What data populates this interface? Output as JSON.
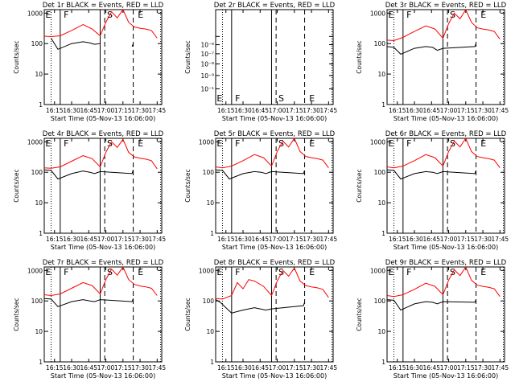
{
  "figure": {
    "xlabel": "Start Time (05-Nov-13 16:06:00)",
    "ylabel": "Counts/sec",
    "x_tick_labels": [
      "16:15",
      "16:30",
      "16:45",
      "17:00",
      "17:15",
      "17:30",
      "17:45"
    ],
    "colors": {
      "events": "#000000",
      "lld": "#ff0000",
      "axes": "#000000"
    }
  },
  "chart_data": [
    {
      "type": "line",
      "title": "Det 1r BLACK = Events, RED = LLD",
      "xlabel": "Start Time (05-Nov-13 16:06:00)",
      "ylabel": "Counts/sec",
      "xlim": [
        "16:06",
        "17:49"
      ],
      "ylim": [
        1,
        1300
      ],
      "yscale": "log",
      "y_ticks": [
        1,
        10,
        100,
        1000
      ],
      "y_tick_labels": [
        "1",
        "10",
        "100",
        "1000"
      ],
      "annotations": [
        "E",
        "F",
        "S",
        "E"
      ],
      "series": [
        {
          "name": "BLACK = Events",
          "color": "#000000",
          "x": [
            "16:06",
            "16:12",
            "16:12",
            "16:18",
            "16:30",
            "16:40",
            "16:46",
            "16:50",
            "16:55",
            "16:55",
            "16:56",
            "16:58",
            "17:21",
            "17:23",
            "17:24"
          ],
          "y": [
            null,
            150,
            150,
            65,
            100,
            115,
            105,
            95,
            100,
            110,
            null,
            null,
            null,
            80,
            100
          ]
        },
        {
          "name": "RED = LLD",
          "color": "#ff0000",
          "x": [
            "16:06",
            "16:12",
            "16:20",
            "16:30",
            "16:40",
            "16:48",
            "16:55",
            "17:00",
            "17:05",
            "17:10",
            "17:15",
            "17:20",
            "17:25",
            "17:30",
            "17:35",
            "17:40",
            "17:45"
          ],
          "y": [
            175,
            170,
            180,
            270,
            420,
            300,
            180,
            500,
            1100,
            700,
            1300,
            500,
            350,
            320,
            300,
            270,
            150
          ]
        }
      ]
    },
    {
      "type": "line",
      "title": "Det 2r BLACK = Events, RED = LLD",
      "xlabel": "Start Time (05-Nov-13 16:06:00)",
      "ylabel": "Counts/sec",
      "xlim": [
        "16:06",
        "17:49"
      ],
      "ylim": [
        0.5,
        1.5
      ],
      "yscale": "log",
      "y_ticks": [
        0.6,
        0.7,
        0.8,
        0.9,
        1.0,
        1.1
      ],
      "y_tick_labels": [
        "10⁻¹",
        "10⁻⁹",
        "10⁻⁸",
        "10⁻⁷",
        "10⁻⁶",
        ""
      ],
      "annotations": [
        "E",
        "F",
        "S",
        "E"
      ],
      "series": []
    },
    {
      "type": "line",
      "title": "Det 3r BLACK = Events, RED = LLD",
      "xlabel": "Start Time (05-Nov-13 16:06:00)",
      "ylabel": "Counts/sec",
      "xlim": [
        "16:06",
        "17:49"
      ],
      "ylim": [
        1,
        1300
      ],
      "yscale": "log",
      "y_ticks": [
        1,
        10,
        100,
        1000
      ],
      "y_tick_labels": [
        "1",
        "10",
        "100",
        "1000"
      ],
      "annotations": [
        "E",
        "F",
        "S",
        "E"
      ],
      "series": [
        {
          "name": "BLACK = Events",
          "color": "#000000",
          "x": [
            "16:06",
            "16:12",
            "16:18",
            "16:30",
            "16:40",
            "16:46",
            "16:50",
            "16:55",
            "17:23",
            "17:24"
          ],
          "y": [
            80,
            75,
            45,
            70,
            80,
            75,
            60,
            70,
            80,
            100
          ]
        },
        {
          "name": "RED = LLD",
          "color": "#ff0000",
          "x": [
            "16:06",
            "16:12",
            "16:20",
            "16:30",
            "16:40",
            "16:48",
            "16:55",
            "17:00",
            "17:05",
            "17:10",
            "17:15",
            "17:20",
            "17:25",
            "17:30",
            "17:35",
            "17:40",
            "17:45"
          ],
          "y": [
            130,
            125,
            160,
            250,
            380,
            300,
            150,
            450,
            1000,
            650,
            1300,
            500,
            330,
            300,
            280,
            250,
            140
          ]
        }
      ]
    },
    {
      "type": "line",
      "title": "Det 4r BLACK = Events, RED = LLD",
      "xlabel": "Start Time (05-Nov-13 16:06:00)",
      "ylabel": "Counts/sec",
      "xlim": [
        "16:06",
        "17:49"
      ],
      "ylim": [
        1,
        1300
      ],
      "yscale": "log",
      "y_ticks": [
        1,
        10,
        100,
        1000
      ],
      "y_tick_labels": [
        "1",
        "10",
        "100",
        "1000"
      ],
      "annotations": [
        "E",
        "F",
        "S",
        "E"
      ],
      "series": [
        {
          "name": "BLACK = Events",
          "color": "#000000",
          "x": [
            "16:06",
            "16:12",
            "16:18",
            "16:30",
            "16:40",
            "16:46",
            "16:50",
            "16:55",
            "17:23",
            "17:24"
          ],
          "y": [
            120,
            115,
            60,
            90,
            110,
            100,
            90,
            105,
            90,
            120
          ]
        },
        {
          "name": "RED = LLD",
          "color": "#ff0000",
          "x": [
            "16:06",
            "16:12",
            "16:20",
            "16:30",
            "16:40",
            "16:48",
            "16:55",
            "17:00",
            "17:05",
            "17:10",
            "17:15",
            "17:20",
            "17:25",
            "17:30",
            "17:35",
            "17:40",
            "17:45"
          ],
          "y": [
            140,
            135,
            150,
            230,
            350,
            280,
            150,
            450,
            1000,
            650,
            1200,
            450,
            320,
            290,
            270,
            240,
            130
          ]
        }
      ]
    },
    {
      "type": "line",
      "title": "Det 5r BLACK = Events, RED = LLD",
      "xlabel": "Start Time (05-Nov-13 16:06:00)",
      "ylabel": "Counts/sec",
      "xlim": [
        "16:06",
        "17:49"
      ],
      "ylim": [
        1,
        1300
      ],
      "yscale": "log",
      "y_ticks": [
        1,
        10,
        100,
        1000
      ],
      "y_tick_labels": [
        "1",
        "10",
        "100",
        "1000"
      ],
      "annotations": [
        "E",
        "F",
        "S",
        "E"
      ],
      "series": [
        {
          "name": "BLACK = Events",
          "color": "#000000",
          "x": [
            "16:06",
            "16:12",
            "16:18",
            "16:30",
            "16:40",
            "16:46",
            "16:50",
            "16:55",
            "17:23",
            "17:24"
          ],
          "y": [
            120,
            115,
            60,
            90,
            105,
            100,
            90,
            105,
            90,
            115
          ]
        },
        {
          "name": "RED = LLD",
          "color": "#ff0000",
          "x": [
            "16:06",
            "16:12",
            "16:20",
            "16:30",
            "16:40",
            "16:48",
            "16:55",
            "17:00",
            "17:05",
            "17:10",
            "17:15",
            "17:20",
            "17:25",
            "17:30",
            "17:35",
            "17:40",
            "17:45"
          ],
          "y": [
            150,
            140,
            160,
            240,
            380,
            300,
            160,
            480,
            1050,
            680,
            1300,
            480,
            330,
            300,
            280,
            250,
            140
          ]
        }
      ]
    },
    {
      "type": "line",
      "title": "Det 6r BLACK = Events, RED = LLD",
      "xlabel": "Start Time (05-Nov-13 16:06:00)",
      "ylabel": "Counts/sec",
      "xlim": [
        "16:06",
        "17:49"
      ],
      "ylim": [
        1,
        1300
      ],
      "yscale": "log",
      "y_ticks": [
        1,
        10,
        100,
        1000
      ],
      "y_tick_labels": [
        "1",
        "10",
        "100",
        "1000"
      ],
      "annotations": [
        "E",
        "F",
        "S",
        "E"
      ],
      "series": [
        {
          "name": "BLACK = Events",
          "color": "#000000",
          "x": [
            "16:06",
            "16:12",
            "16:18",
            "16:30",
            "16:40",
            "16:46",
            "16:50",
            "16:55",
            "17:23",
            "17:24"
          ],
          "y": [
            120,
            115,
            60,
            90,
            105,
            100,
            90,
            105,
            90,
            115
          ]
        },
        {
          "name": "RED = LLD",
          "color": "#ff0000",
          "x": [
            "16:06",
            "16:12",
            "16:20",
            "16:30",
            "16:40",
            "16:48",
            "16:55",
            "17:00",
            "17:05",
            "17:10",
            "17:15",
            "17:20",
            "17:25",
            "17:30",
            "17:35",
            "17:40",
            "17:45"
          ],
          "y": [
            150,
            140,
            160,
            240,
            380,
            300,
            160,
            480,
            1050,
            680,
            1300,
            480,
            330,
            300,
            280,
            250,
            140
          ]
        }
      ]
    },
    {
      "type": "line",
      "title": "Det 7r BLACK = Events, RED = LLD",
      "xlabel": "Start Time (05-Nov-13 16:06:00)",
      "ylabel": "Counts/sec",
      "xlim": [
        "16:06",
        "17:49"
      ],
      "ylim": [
        1,
        1300
      ],
      "yscale": "log",
      "y_ticks": [
        1,
        10,
        100,
        1000
      ],
      "y_tick_labels": [
        "1",
        "10",
        "100",
        "1000"
      ],
      "annotations": [
        "E",
        "F",
        "S",
        "E"
      ],
      "series": [
        {
          "name": "BLACK = Events",
          "color": "#000000",
          "x": [
            "16:06",
            "16:12",
            "16:18",
            "16:30",
            "16:40",
            "16:46",
            "16:50",
            "16:55",
            "17:23",
            "17:24"
          ],
          "y": [
            120,
            115,
            65,
            95,
            110,
            100,
            95,
            110,
            95,
            120
          ]
        },
        {
          "name": "RED = LLD",
          "color": "#ff0000",
          "x": [
            "16:06",
            "16:12",
            "16:20",
            "16:30",
            "16:40",
            "16:48",
            "16:55",
            "17:00",
            "17:05",
            "17:10",
            "17:15",
            "17:20",
            "17:25",
            "17:30",
            "17:35",
            "17:40",
            "17:45"
          ],
          "y": [
            160,
            150,
            170,
            260,
            400,
            320,
            170,
            500,
            1100,
            700,
            1300,
            500,
            350,
            310,
            290,
            260,
            150
          ]
        }
      ]
    },
    {
      "type": "line",
      "title": "Det 8r BLACK = Events, RED = LLD",
      "xlabel": "Start Time (05-Nov-13 16:06:00)",
      "ylabel": "Counts/sec",
      "xlim": [
        "16:06",
        "17:49"
      ],
      "ylim": [
        1,
        1300
      ],
      "yscale": "log",
      "y_ticks": [
        1,
        10,
        100,
        1000
      ],
      "y_tick_labels": [
        "1",
        "10",
        "100",
        "1000"
      ],
      "annotations": [
        "E",
        "F",
        "S",
        "E"
      ],
      "series": [
        {
          "name": "BLACK = Events",
          "color": "#000000",
          "x": [
            "16:06",
            "16:10",
            "16:15",
            "16:20",
            "16:25",
            "16:30",
            "16:35",
            "16:40",
            "16:45",
            "16:50",
            "16:55",
            "17:23",
            "17:24"
          ],
          "y": [
            110,
            90,
            60,
            40,
            45,
            50,
            55,
            60,
            55,
            50,
            55,
            70,
            90
          ]
        },
        {
          "name": "RED = LLD",
          "color": "#ff0000",
          "x": [
            "16:06",
            "16:12",
            "16:20",
            "16:25",
            "16:30",
            "16:35",
            "16:40",
            "16:48",
            "16:55",
            "17:00",
            "17:05",
            "17:10",
            "17:15",
            "17:20",
            "17:25",
            "17:30",
            "17:35",
            "17:40",
            "17:45"
          ],
          "y": [
            120,
            115,
            150,
            400,
            250,
            500,
            450,
            300,
            150,
            450,
            1000,
            650,
            1200,
            450,
            320,
            290,
            270,
            240,
            130
          ]
        }
      ]
    },
    {
      "type": "line",
      "title": "Det 9r BLACK = Events, RED = LLD",
      "xlabel": "Start Time (05-Nov-13 16:06:00)",
      "ylabel": "Counts/sec",
      "xlim": [
        "16:06",
        "17:49"
      ],
      "ylim": [
        1,
        1300
      ],
      "yscale": "log",
      "y_ticks": [
        1,
        10,
        100,
        1000
      ],
      "y_tick_labels": [
        "1",
        "10",
        "100",
        "1000"
      ],
      "annotations": [
        "E",
        "F",
        "S",
        "E"
      ],
      "series": [
        {
          "name": "BLACK = Events",
          "color": "#000000",
          "x": [
            "16:06",
            "16:12",
            "16:18",
            "16:30",
            "16:40",
            "16:46",
            "16:50",
            "16:55",
            "17:23",
            "17:24"
          ],
          "y": [
            110,
            105,
            50,
            80,
            95,
            90,
            80,
            95,
            90,
            110
          ]
        },
        {
          "name": "RED = LLD",
          "color": "#ff0000",
          "x": [
            "16:06",
            "16:12",
            "16:20",
            "16:30",
            "16:40",
            "16:48",
            "16:55",
            "17:00",
            "17:05",
            "17:10",
            "17:15",
            "17:20",
            "17:25",
            "17:30",
            "17:35",
            "17:40",
            "17:45"
          ],
          "y": [
            150,
            140,
            160,
            240,
            380,
            300,
            160,
            480,
            1050,
            680,
            1300,
            480,
            330,
            300,
            280,
            250,
            140
          ]
        }
      ]
    }
  ]
}
